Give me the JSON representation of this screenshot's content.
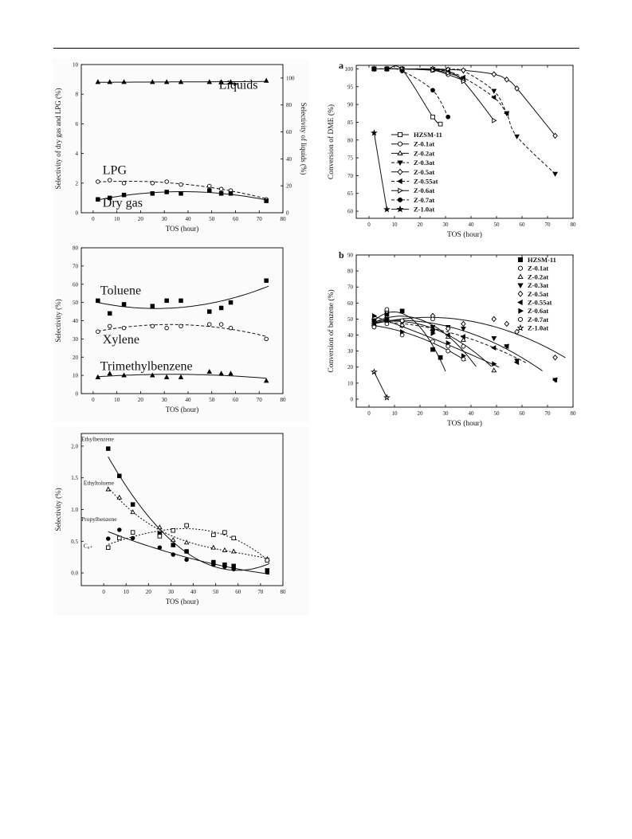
{
  "chart_data": [
    {
      "id": "p1",
      "type": "scatter",
      "xlabel": "TOS (hour)",
      "ylabel": "Selectivity of dry gas and LPG (%)",
      "ylabel_right": "Selectivity of liquids (%)",
      "xlim": [
        -5,
        80
      ],
      "ylim": [
        0,
        10
      ],
      "ylim_right": [
        0,
        110
      ],
      "xticks": [
        0,
        10,
        20,
        30,
        40,
        50,
        60,
        70,
        80
      ],
      "yticks": [
        0,
        2,
        4,
        6,
        8,
        10
      ],
      "yticks_right": [
        0,
        20,
        40,
        60,
        80,
        100
      ],
      "series": [
        {
          "name": "LPG",
          "marker": "circle-open",
          "x": [
            2,
            7,
            13,
            25,
            31,
            37,
            49,
            54,
            58,
            73
          ],
          "y": [
            2.1,
            2.2,
            2.0,
            2.0,
            2.1,
            1.9,
            1.8,
            1.6,
            1.5,
            0.9
          ]
        },
        {
          "name": "Dry gas",
          "marker": "square",
          "x": [
            2,
            7,
            13,
            25,
            31,
            37,
            49,
            54,
            58,
            73
          ],
          "y": [
            0.9,
            1.0,
            1.2,
            1.3,
            1.4,
            1.3,
            1.5,
            1.3,
            1.3,
            0.8
          ]
        },
        {
          "name": "Liquids",
          "axis": "right",
          "marker": "triangle",
          "x": [
            2,
            7,
            13,
            25,
            31,
            37,
            49,
            54,
            58,
            73
          ],
          "y": [
            97,
            97,
            97,
            97,
            97,
            97,
            97,
            97,
            97,
            98
          ]
        }
      ]
    },
    {
      "id": "p2",
      "type": "scatter",
      "xlabel": "TOS (hour)",
      "ylabel": "Selectivity (%)",
      "xlim": [
        -5,
        80
      ],
      "ylim": [
        0,
        80
      ],
      "xticks": [
        0,
        10,
        20,
        30,
        40,
        50,
        60,
        70,
        80
      ],
      "yticks": [
        0,
        10,
        20,
        30,
        40,
        50,
        60,
        70,
        80
      ],
      "series": [
        {
          "name": "Toluene",
          "marker": "square",
          "x": [
            2,
            7,
            13,
            25,
            31,
            37,
            49,
            54,
            58,
            73
          ],
          "y": [
            51,
            44,
            49,
            48,
            51,
            51,
            45,
            47,
            50,
            62
          ]
        },
        {
          "name": "Xylene",
          "marker": "circle-open",
          "x": [
            2,
            7,
            13,
            25,
            31,
            37,
            49,
            54,
            58,
            73
          ],
          "y": [
            34,
            37,
            36,
            37,
            36,
            37,
            38,
            38,
            36,
            30
          ]
        },
        {
          "name": "Trimethylbenzene",
          "marker": "triangle",
          "x": [
            2,
            7,
            13,
            25,
            31,
            37,
            49,
            54,
            58,
            73
          ],
          "y": [
            9,
            11,
            10,
            10,
            9,
            9,
            12,
            11,
            11,
            7
          ]
        }
      ]
    },
    {
      "id": "p3",
      "type": "scatter",
      "xlabel": "TOS (hour)",
      "ylabel": "Selectivity (%)",
      "xlim": [
        -10,
        80
      ],
      "ylim": [
        -0.2,
        2.2
      ],
      "xticks": [
        0,
        10,
        20,
        30,
        40,
        50,
        60,
        70,
        80
      ],
      "yticks": [
        0.0,
        0.5,
        1.0,
        1.5,
        2.0
      ],
      "series": [
        {
          "name": "Ethylbenzene",
          "marker": "square",
          "x": [
            2,
            7,
            13,
            25,
            31,
            37,
            49,
            54,
            58,
            73
          ],
          "y": [
            1.96,
            1.53,
            1.08,
            0.62,
            0.44,
            0.34,
            0.17,
            0.13,
            0.11,
            0.04
          ]
        },
        {
          "name": "Ethyltoluene",
          "marker": "triangle-open",
          "x": [
            2,
            7,
            13,
            25,
            31,
            37,
            49,
            54,
            58,
            73
          ],
          "y": [
            1.32,
            1.19,
            0.96,
            0.72,
            0.52,
            0.48,
            0.4,
            0.36,
            0.34,
            0.22
          ]
        },
        {
          "name": "Propylbenzene",
          "marker": "circle",
          "x": [
            2,
            7,
            13,
            25,
            31,
            37,
            49,
            54,
            58,
            73
          ],
          "y": [
            0.54,
            0.68,
            0.55,
            0.4,
            0.29,
            0.21,
            0.13,
            0.1,
            0.06,
            0.01
          ]
        },
        {
          "name": "C₈₊",
          "marker": "square-open",
          "x": [
            2,
            7,
            13,
            25,
            31,
            37,
            49,
            54,
            58,
            73
          ],
          "y": [
            0.4,
            0.55,
            0.64,
            0.58,
            0.67,
            0.75,
            0.6,
            0.64,
            0.55,
            0.2
          ]
        }
      ]
    },
    {
      "id": "p4",
      "type": "line",
      "panel_label": "a",
      "xlabel": "TOS (hour)",
      "ylabel": "Conversion of DME (%)",
      "xlim": [
        -5,
        80
      ],
      "ylim": [
        58,
        101
      ],
      "xticks": [
        0,
        10,
        20,
        30,
        40,
        50,
        60,
        70,
        80
      ],
      "yticks": [
        60,
        65,
        70,
        75,
        80,
        85,
        90,
        95,
        100
      ],
      "legend": "middle-left",
      "series": [
        {
          "name": "HZSM-11",
          "marker": "square-open",
          "dash": false,
          "x": [
            2,
            7,
            13,
            25,
            28
          ],
          "y": [
            100,
            100,
            99.8,
            86.5,
            84.5
          ]
        },
        {
          "name": "Z-0.1at",
          "marker": "circle-open",
          "dash": false,
          "x": [
            2,
            7,
            13,
            25,
            31,
            37
          ],
          "y": [
            100,
            100,
            100,
            99.6,
            98.4,
            96.8
          ]
        },
        {
          "name": "Z-0.2at",
          "marker": "triangle-open",
          "dash": false,
          "x": [
            2,
            7,
            13,
            25,
            31,
            37
          ],
          "y": [
            100,
            100,
            100,
            99.8,
            99.4,
            97.0
          ]
        },
        {
          "name": "Z-0.3at",
          "marker": "triangle-down",
          "dash": true,
          "x": [
            2,
            7,
            13,
            25,
            31,
            37,
            49,
            54,
            58,
            73
          ],
          "y": [
            100,
            100,
            100,
            100,
            99.8,
            99.4,
            93.8,
            87.5,
            81.0,
            70.5
          ]
        },
        {
          "name": "Z-0.5at",
          "marker": "diamond-open",
          "dash": false,
          "x": [
            2,
            7,
            13,
            25,
            31,
            37,
            49,
            54,
            58,
            73
          ],
          "y": [
            100,
            100,
            100,
            100,
            99.8,
            99.6,
            98.5,
            97.0,
            94.5,
            81.2
          ]
        },
        {
          "name": "Z-0.55at",
          "marker": "triangle-left",
          "dash": true,
          "x": [
            2,
            7,
            13,
            25,
            31,
            37,
            49,
            54
          ],
          "y": [
            100,
            100,
            100,
            99.8,
            99.2,
            97.6,
            92.0,
            87.5
          ]
        },
        {
          "name": "Z-0.6at",
          "marker": "triangle-right-open",
          "dash": false,
          "x": [
            2,
            7,
            13,
            25,
            31,
            37,
            49
          ],
          "y": [
            100,
            100,
            100,
            99.6,
            98.8,
            96.5,
            85.5
          ]
        },
        {
          "name": "Z-0.7at",
          "marker": "circle",
          "dash": true,
          "x": [
            2,
            7,
            13,
            25,
            31
          ],
          "y": [
            100,
            100,
            99.4,
            94.0,
            86.5
          ]
        },
        {
          "name": "Z-1.0at",
          "marker": "star",
          "dash": false,
          "x": [
            2,
            7
          ],
          "y": [
            82,
            60.5
          ]
        }
      ]
    },
    {
      "id": "p5",
      "type": "scatter",
      "panel_label": "b",
      "xlabel": "TOS (hour)",
      "ylabel": "Conversion of benzene (%)",
      "xlim": [
        -5,
        80
      ],
      "ylim": [
        -5,
        90
      ],
      "xticks": [
        0,
        10,
        20,
        30,
        40,
        50,
        60,
        70,
        80
      ],
      "yticks": [
        0,
        10,
        20,
        30,
        40,
        50,
        60,
        70,
        80,
        90
      ],
      "legend": "top-right",
      "series": [
        {
          "name": "HZSM-11",
          "marker": "square",
          "x": [
            2,
            7,
            13,
            25,
            28
          ],
          "y": [
            49,
            53,
            55,
            31,
            26
          ]
        },
        {
          "name": "Z-0.1at",
          "marker": "circle-open",
          "x": [
            2,
            7,
            13,
            25,
            31,
            37
          ],
          "y": [
            45,
            47,
            40,
            36,
            30,
            25
          ]
        },
        {
          "name": "Z-0.2at",
          "marker": "triangle-open",
          "x": [
            2,
            7,
            13,
            25,
            31,
            37,
            49
          ],
          "y": [
            47,
            51,
            46,
            44,
            39,
            37,
            18
          ]
        },
        {
          "name": "Z-0.3at",
          "marker": "triangle-down",
          "x": [
            2,
            7,
            13,
            25,
            31,
            37,
            49,
            54,
            58,
            73
          ],
          "y": [
            49,
            50,
            48,
            45,
            45,
            44,
            38,
            33,
            24,
            12
          ]
        },
        {
          "name": "Z-0.5at",
          "marker": "diamond-open",
          "x": [
            2,
            7,
            13,
            25,
            31,
            37,
            49,
            54,
            58,
            73
          ],
          "y": [
            46,
            55,
            46,
            52,
            44,
            47,
            50,
            47,
            42,
            26
          ]
        },
        {
          "name": "Z-0.55at",
          "marker": "triangle-left",
          "x": [
            2,
            7,
            13,
            25,
            31,
            37,
            49,
            54,
            58,
            73
          ],
          "y": [
            47,
            49,
            49,
            43,
            40,
            39,
            32,
            33,
            23,
            12
          ]
        },
        {
          "name": "Z-0.6at",
          "marker": "triangle-right",
          "x": [
            2,
            7,
            13,
            25,
            31,
            37,
            49
          ],
          "y": [
            52,
            50,
            42,
            41,
            35,
            27,
            22
          ]
        },
        {
          "name": "Z-0.7at",
          "marker": "circle-open",
          "x": [
            2,
            7,
            13,
            25,
            31,
            37
          ],
          "y": [
            45,
            56,
            49,
            50,
            33,
            33
          ]
        },
        {
          "name": "Z-1.0at",
          "marker": "star-open",
          "x": [
            2,
            7
          ],
          "y": [
            17,
            1
          ]
        }
      ]
    }
  ]
}
